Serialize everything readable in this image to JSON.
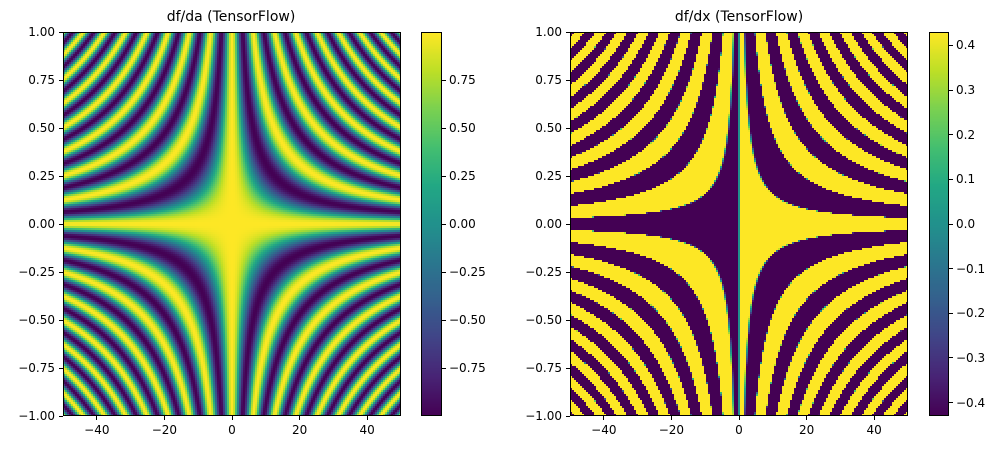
{
  "chart_data": [
    {
      "type": "heatmap",
      "title": "df/da (TensorFlow)",
      "xlabel": "",
      "ylabel": "",
      "xlim": [
        -50,
        50
      ],
      "ylim": [
        -1.0,
        1.0
      ],
      "x_ticks": [
        -40,
        -20,
        0,
        20,
        40
      ],
      "x_tick_labels": [
        "−40",
        "−20",
        "0",
        "20",
        "40"
      ],
      "y_ticks": [
        1.0,
        0.75,
        0.5,
        0.25,
        0.0,
        -0.25,
        -0.5,
        -0.75,
        -1.0
      ],
      "y_tick_labels": [
        "1.00",
        "0.75",
        "0.50",
        "0.25",
        "0.00",
        "−0.25",
        "−0.50",
        "−0.75",
        "−1.00"
      ],
      "function": "cos(a*x)",
      "colormap": "viridis",
      "colorbar": {
        "range": [
          -1.0,
          1.0
        ],
        "ticks": [
          0.75,
          0.5,
          0.25,
          0.0,
          -0.25,
          -0.5,
          -0.75
        ],
        "tick_labels": [
          "0.75",
          "0.50",
          "0.25",
          "0.00",
          "−0.25",
          "−0.50",
          "−0.75"
        ]
      }
    },
    {
      "type": "heatmap",
      "title": "df/dx (TensorFlow)",
      "xlabel": "",
      "ylabel": "",
      "xlim": [
        -50,
        50
      ],
      "ylim": [
        -1.0,
        1.0
      ],
      "x_ticks": [
        -40,
        -20,
        0,
        20,
        40
      ],
      "x_tick_labels": [
        "−40",
        "−20",
        "0",
        "20",
        "40"
      ],
      "y_ticks": [
        1.0,
        0.75,
        0.5,
        0.25,
        0.0,
        -0.25,
        -0.5,
        -0.75,
        -1.0
      ],
      "y_tick_labels": [
        "1.00",
        "0.75",
        "0.50",
        "0.25",
        "0.00",
        "−0.25",
        "−0.50",
        "−0.75",
        "−1.00"
      ],
      "function": "a*cos(a*x)",
      "colormap": "viridis",
      "colorbar": {
        "range": [
          -0.43,
          0.43
        ],
        "ticks": [
          0.4,
          0.3,
          0.2,
          0.1,
          0.0,
          -0.1,
          -0.2,
          -0.3,
          -0.4
        ],
        "tick_labels": [
          "0.4",
          "0.3",
          "0.2",
          "0.1",
          "0.0",
          "−0.1",
          "−0.2",
          "−0.3",
          "−0.4"
        ]
      }
    }
  ]
}
